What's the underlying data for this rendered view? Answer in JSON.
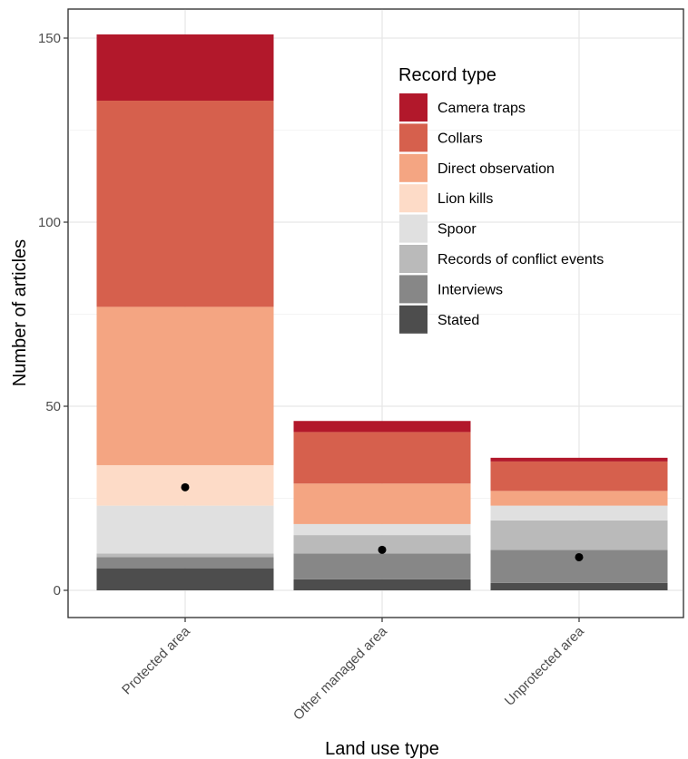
{
  "chart_data": {
    "type": "bar",
    "stacked": true,
    "xlabel": "Land use type",
    "ylabel": "Number of articles",
    "ylim": [
      -7,
      159
    ],
    "yticks": [
      0,
      50,
      100,
      150
    ],
    "grid": true,
    "legend_title": "Record type",
    "legend_position": "top-right",
    "categories": [
      "Protected area",
      "Other managed area",
      "Unprotected area"
    ],
    "series": [
      {
        "name": "Stated",
        "color": "#4d4d4d",
        "values": [
          6,
          3,
          2
        ]
      },
      {
        "name": "Interviews",
        "color": "#878787",
        "values": [
          3,
          7,
          9
        ]
      },
      {
        "name": "Records of conflict events",
        "color": "#bababa",
        "values": [
          1,
          5,
          8
        ]
      },
      {
        "name": "Spoor",
        "color": "#e0e0e0",
        "values": [
          13,
          3,
          4
        ]
      },
      {
        "name": "Lion kills",
        "color": "#fddbc7",
        "values": [
          11,
          0,
          0
        ]
      },
      {
        "name": "Direct observation",
        "color": "#f4a582",
        "values": [
          43,
          11,
          4
        ]
      },
      {
        "name": "Collars",
        "color": "#d6604d",
        "values": [
          56,
          14,
          8
        ]
      },
      {
        "name": "Camera traps",
        "color": "#b2182b",
        "values": [
          18,
          3,
          1
        ]
      }
    ],
    "points": [
      28,
      11,
      9
    ],
    "legend_order": [
      "Camera traps",
      "Collars",
      "Direct observation",
      "Lion kills",
      "Spoor",
      "Records of conflict events",
      "Interviews",
      "Stated"
    ]
  }
}
